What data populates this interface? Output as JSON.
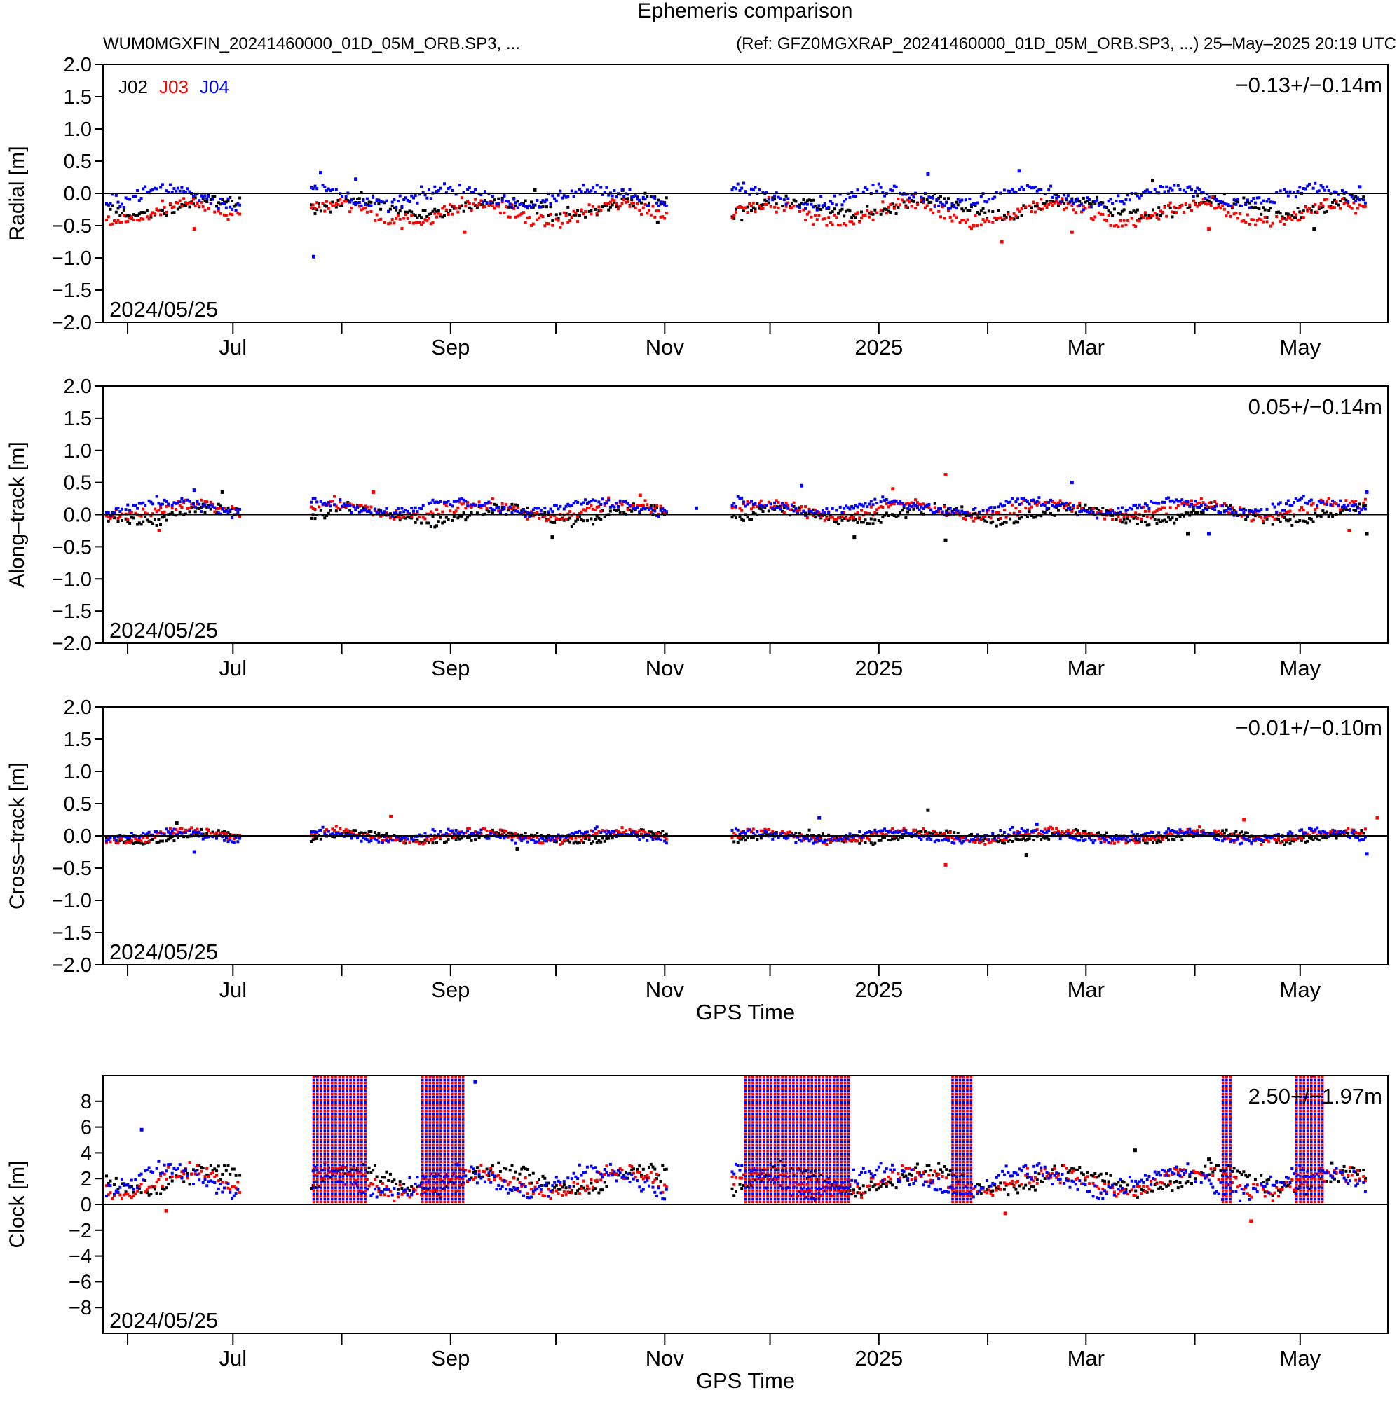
{
  "header": {
    "title": "Ephemeris comparison",
    "left_text": "WUM0MGXFIN_20241460000_01D_05M_ORB.SP3, ...",
    "right_text": "(Ref: GFZ0MGXRAP_20241460000_01D_05M_ORB.SP3, ...) 25–May–2025 20:19 UTC"
  },
  "colors": {
    "J02": "#000000",
    "J03": "#ff0000",
    "J04": "#0000ff",
    "axis": "#000000",
    "background": "#ffffff"
  },
  "legend": [
    {
      "name": "J02",
      "color": "#000000"
    },
    {
      "name": "J03",
      "color": "#ff0000"
    },
    {
      "name": "J04",
      "color": "#0000ff"
    }
  ],
  "x_tick_labels": [
    "Jul",
    "Sep",
    "Nov",
    "2025",
    "Mar",
    "May"
  ],
  "x_axis_title": "GPS Time",
  "start_date_label": "2024/05/25",
  "chart_data": [
    {
      "type": "scatter",
      "title": "Radial",
      "ylabel": "Radial [m]",
      "xlabel": "",
      "x_start": "2024-05-25",
      "x_end": "2025-05-26",
      "ylim": [
        -2.0,
        2.0
      ],
      "y_ticks": [
        "−2.0",
        "−1.5",
        "−1.0",
        "−0.5",
        "0.0",
        "0.5",
        "1.0",
        "1.5",
        "2.0"
      ],
      "stat_text": "−0.13+/−0.14m",
      "grid": false,
      "legend_position": "top-left",
      "series": [
        {
          "name": "J02",
          "color": "#000000",
          "center": -0.22,
          "spread": 0.17,
          "points": [
            [
              "2024-06-05",
              -0.3
            ],
            [
              "2024-09-25",
              0.05
            ],
            [
              "2024-10-20",
              0.05
            ],
            [
              "2024-10-30",
              -0.45
            ],
            [
              "2025-03-20",
              0.2
            ],
            [
              "2025-05-05",
              -0.55
            ]
          ]
        },
        {
          "name": "J03",
          "color": "#ff0000",
          "center": -0.3,
          "spread": 0.2,
          "points": [
            [
              "2024-06-20",
              -0.55
            ],
            [
              "2024-09-05",
              -0.6
            ],
            [
              "2025-01-28",
              -0.5
            ],
            [
              "2025-02-05",
              -0.75
            ],
            [
              "2025-02-25",
              -0.6
            ],
            [
              "2025-04-05",
              -0.55
            ]
          ]
        },
        {
          "name": "J04",
          "color": "#0000ff",
          "center": -0.05,
          "spread": 0.17,
          "points": [
            [
              "2024-07-24",
              -0.98
            ],
            [
              "2024-07-26",
              0.32
            ],
            [
              "2024-08-05",
              0.22
            ],
            [
              "2025-01-15",
              0.3
            ],
            [
              "2025-02-10",
              0.35
            ],
            [
              "2025-05-18",
              0.1
            ]
          ]
        }
      ]
    },
    {
      "type": "scatter",
      "title": "Along-track",
      "ylabel": "Along–track [m]",
      "xlabel": "",
      "x_start": "2024-05-25",
      "x_end": "2025-05-26",
      "ylim": [
        -2.0,
        2.0
      ],
      "y_ticks": [
        "−2.0",
        "−1.5",
        "−1.0",
        "−0.5",
        "0.0",
        "0.5",
        "1.0",
        "1.5",
        "2.0"
      ],
      "stat_text": "0.05+/−0.14m",
      "grid": false,
      "series": [
        {
          "name": "J02",
          "color": "#000000",
          "center": 0.0,
          "spread": 0.15,
          "points": [
            [
              "2024-06-28",
              0.35
            ],
            [
              "2024-09-30",
              -0.35
            ],
            [
              "2024-12-25",
              -0.35
            ],
            [
              "2025-01-20",
              -0.4
            ],
            [
              "2025-03-30",
              -0.3
            ],
            [
              "2025-05-20",
              -0.3
            ]
          ]
        },
        {
          "name": "J03",
          "color": "#ff0000",
          "center": 0.07,
          "spread": 0.15,
          "points": [
            [
              "2024-06-10",
              -0.25
            ],
            [
              "2024-08-10",
              0.35
            ],
            [
              "2024-10-25",
              0.3
            ],
            [
              "2025-01-20",
              0.62
            ],
            [
              "2025-01-05",
              0.4
            ],
            [
              "2025-05-15",
              -0.25
            ]
          ]
        },
        {
          "name": "J04",
          "color": "#0000ff",
          "center": 0.12,
          "spread": 0.13,
          "points": [
            [
              "2024-06-20",
              0.38
            ],
            [
              "2024-11-10",
              0.1
            ],
            [
              "2024-12-10",
              0.45
            ],
            [
              "2025-02-25",
              0.5
            ],
            [
              "2025-04-05",
              -0.3
            ],
            [
              "2025-05-20",
              0.35
            ]
          ]
        }
      ]
    },
    {
      "type": "scatter",
      "title": "Cross-track",
      "ylabel": "Cross–track [m]",
      "xlabel": "GPS Time",
      "x_start": "2024-05-25",
      "x_end": "2025-05-26",
      "ylim": [
        -2.0,
        2.0
      ],
      "y_ticks": [
        "−2.0",
        "−1.5",
        "−1.0",
        "−0.5",
        "0.0",
        "0.5",
        "1.0",
        "1.5",
        "2.0"
      ],
      "stat_text": "−0.01+/−0.10m",
      "grid": false,
      "series": [
        {
          "name": "J02",
          "color": "#000000",
          "center": -0.02,
          "spread": 0.1,
          "points": [
            [
              "2024-06-15",
              0.2
            ],
            [
              "2025-01-15",
              0.4
            ],
            [
              "2025-02-12",
              -0.3
            ],
            [
              "2024-09-20",
              -0.2
            ]
          ]
        },
        {
          "name": "J03",
          "color": "#ff0000",
          "center": 0.0,
          "spread": 0.11,
          "points": [
            [
              "2024-08-15",
              0.3
            ],
            [
              "2025-01-20",
              -0.45
            ],
            [
              "2025-04-15",
              0.25
            ],
            [
              "2025-05-23",
              0.28
            ]
          ]
        },
        {
          "name": "J04",
          "color": "#0000ff",
          "center": 0.0,
          "spread": 0.1,
          "points": [
            [
              "2024-06-20",
              -0.25
            ],
            [
              "2024-12-15",
              0.28
            ],
            [
              "2025-02-15",
              0.18
            ],
            [
              "2025-05-20",
              -0.28
            ]
          ]
        }
      ]
    },
    {
      "type": "scatter",
      "title": "Clock",
      "ylabel": "Clock [m]",
      "xlabel": "GPS Time",
      "x_start": "2024-05-25",
      "x_end": "2025-05-26",
      "ylim": [
        -10,
        10
      ],
      "y_ticks": [
        "−8",
        "−6",
        "−4",
        "−2",
        "0",
        "2",
        "4",
        "6",
        "8"
      ],
      "stat_text": "2.50+/−1.97m",
      "grid": false,
      "series": [
        {
          "name": "J02",
          "color": "#000000",
          "center": 1.9,
          "spread": 1.1,
          "points": [
            [
              "2025-03-15",
              4.2
            ],
            [
              "2025-04-05",
              3.5
            ],
            [
              "2025-05-10",
              3.2
            ]
          ]
        },
        {
          "name": "J03",
          "color": "#ff0000",
          "center": 1.7,
          "spread": 1.2,
          "points": [
            [
              "2024-06-12",
              -0.5
            ],
            [
              "2025-02-06",
              -0.7
            ],
            [
              "2025-04-17",
              -1.3
            ]
          ]
        },
        {
          "name": "J04",
          "color": "#0000ff",
          "center": 1.8,
          "spread": 1.2,
          "points": [
            [
              "2024-06-05",
              5.8
            ],
            [
              "2024-07-25",
              10.0
            ],
            [
              "2024-08-27",
              10.0
            ],
            [
              "2024-09-08",
              9.5
            ],
            [
              "2024-11-26",
              10.0
            ],
            [
              "2024-12-20",
              10.0
            ],
            [
              "2025-01-25",
              10.0
            ],
            [
              "2025-04-10",
              10.0
            ],
            [
              "2025-05-05",
              10.0
            ]
          ]
        }
      ],
      "spikes": [
        {
          "start": "2024-07-24",
          "end": "2024-08-08",
          "top": 10.0
        },
        {
          "start": "2024-08-24",
          "end": "2024-09-05",
          "top": 10.0
        },
        {
          "start": "2024-11-24",
          "end": "2024-12-24",
          "top": 10.0
        },
        {
          "start": "2025-01-22",
          "end": "2025-01-28",
          "top": 10.0
        },
        {
          "start": "2025-04-09",
          "end": "2025-04-12",
          "top": 10.0
        },
        {
          "start": "2025-04-30",
          "end": "2025-05-08",
          "top": 10.0
        }
      ]
    }
  ],
  "data_gaps": [
    {
      "start": "2024-07-03",
      "end": "2024-07-23"
    },
    {
      "start": "2024-11-02",
      "end": "2024-11-20"
    }
  ]
}
